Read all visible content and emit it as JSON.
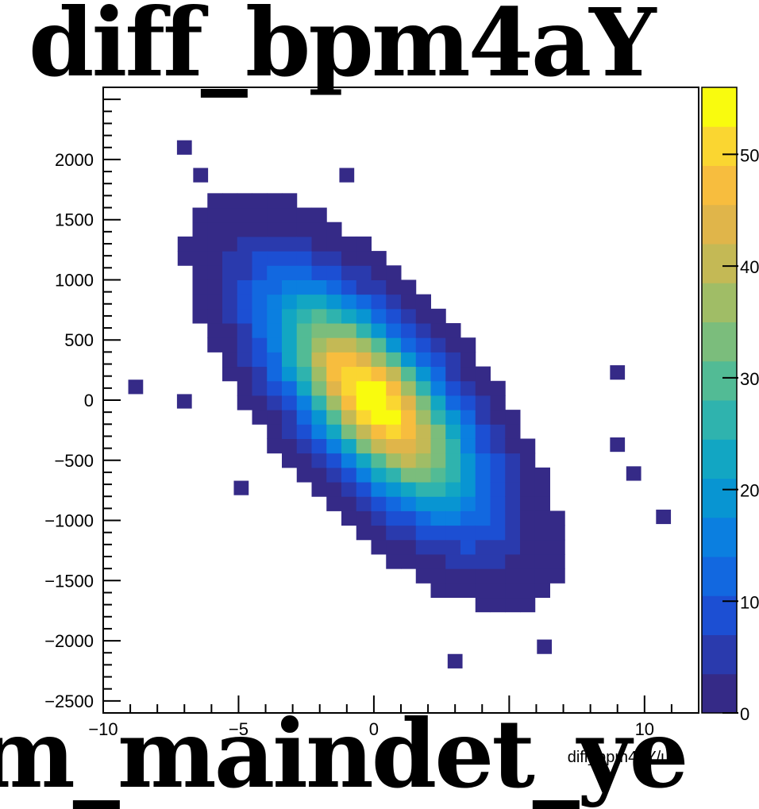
{
  "chart_data": {
    "type": "heatmap",
    "title": "diff_bpm4aY",
    "bottom_title_fragment": "m_maindet_ye",
    "xlabel": "diff_bpm4aY/um",
    "ylabel": "",
    "xlim": [
      -10,
      12
    ],
    "ylim": [
      -2600,
      2600
    ],
    "x_ticks": [
      -10,
      -5,
      0,
      5,
      10
    ],
    "y_ticks": [
      -2500,
      -2000,
      -1500,
      -1000,
      -500,
      0,
      500,
      1000,
      1500,
      2000
    ],
    "z_ticks": [
      0,
      10,
      20,
      30,
      40,
      50
    ],
    "zlim": [
      0,
      56
    ],
    "bin_width_x": 0.55,
    "bin_width_y": 120,
    "distribution": {
      "center_x": 0.0,
      "center_y": 0,
      "sigma_x": 2.4,
      "sigma_y": 600,
      "correlation": -0.7,
      "peak_count": 56,
      "fill_threshold": 0.8
    },
    "isolated_bins": [
      {
        "x": -7.0,
        "y": 2100,
        "count": 1
      },
      {
        "x": -6.4,
        "y": 1870,
        "count": 1
      },
      {
        "x": -1.0,
        "y": 1870,
        "count": 1
      },
      {
        "x": -8.8,
        "y": 110,
        "count": 1
      },
      {
        "x": -7.0,
        "y": -10,
        "count": 1
      },
      {
        "x": 9.0,
        "y": 230,
        "count": 1
      },
      {
        "x": 9.0,
        "y": -370,
        "count": 1
      },
      {
        "x": 9.6,
        "y": -610,
        "count": 1
      },
      {
        "x": 10.7,
        "y": -970,
        "count": 1
      },
      {
        "x": 3.0,
        "y": -2170,
        "count": 1
      },
      {
        "x": 6.3,
        "y": -2050,
        "count": 1
      },
      {
        "x": -4.9,
        "y": -730,
        "count": 1
      }
    ],
    "colormap": [
      "#352a87",
      "#2a3aad",
      "#1c4fd3",
      "#1268e0",
      "#0b7fe0",
      "#0895d2",
      "#12a6c3",
      "#2fb3ae",
      "#52bb95",
      "#7bbd7c",
      "#a0bd66",
      "#c4b955",
      "#e0b54a",
      "#f7bd3e",
      "#fad631",
      "#f9fb0e"
    ],
    "axis_color": "#000000",
    "background": "#ffffff"
  }
}
